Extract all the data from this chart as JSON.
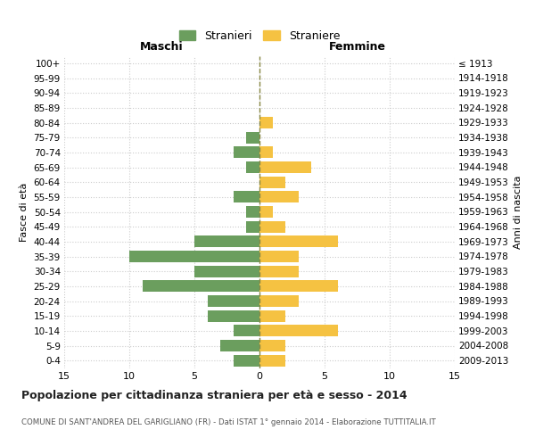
{
  "age_groups": [
    "0-4",
    "5-9",
    "10-14",
    "15-19",
    "20-24",
    "25-29",
    "30-34",
    "35-39",
    "40-44",
    "45-49",
    "50-54",
    "55-59",
    "60-64",
    "65-69",
    "70-74",
    "75-79",
    "80-84",
    "85-89",
    "90-94",
    "95-99",
    "100+"
  ],
  "birth_years": [
    "2009-2013",
    "2004-2008",
    "1999-2003",
    "1994-1998",
    "1989-1993",
    "1984-1988",
    "1979-1983",
    "1974-1978",
    "1969-1973",
    "1964-1968",
    "1959-1963",
    "1954-1958",
    "1949-1953",
    "1944-1948",
    "1939-1943",
    "1934-1938",
    "1929-1933",
    "1924-1928",
    "1919-1923",
    "1914-1918",
    "≤ 1913"
  ],
  "males": [
    2,
    3,
    2,
    4,
    4,
    9,
    5,
    10,
    5,
    1,
    1,
    2,
    0,
    1,
    2,
    1,
    0,
    0,
    0,
    0,
    0
  ],
  "females": [
    2,
    2,
    6,
    2,
    3,
    6,
    3,
    3,
    6,
    2,
    1,
    3,
    2,
    4,
    1,
    0,
    1,
    0,
    0,
    0,
    0
  ],
  "male_color": "#6b9e5e",
  "female_color": "#f5c242",
  "background_color": "#ffffff",
  "grid_color": "#cccccc",
  "dashed_line_color": "#888844",
  "title": "Popolazione per cittadinanza straniera per età e sesso - 2014",
  "subtitle": "COMUNE DI SANT'ANDREA DEL GARIGLIANO (FR) - Dati ISTAT 1° gennaio 2014 - Elaborazione TUTTITALIA.IT",
  "xlabel_left": "Maschi",
  "xlabel_right": "Femmine",
  "ylabel_left": "Fasce di età",
  "ylabel_right": "Anni di nascita",
  "xlim": 15,
  "legend_labels": [
    "Stranieri",
    "Straniere"
  ]
}
